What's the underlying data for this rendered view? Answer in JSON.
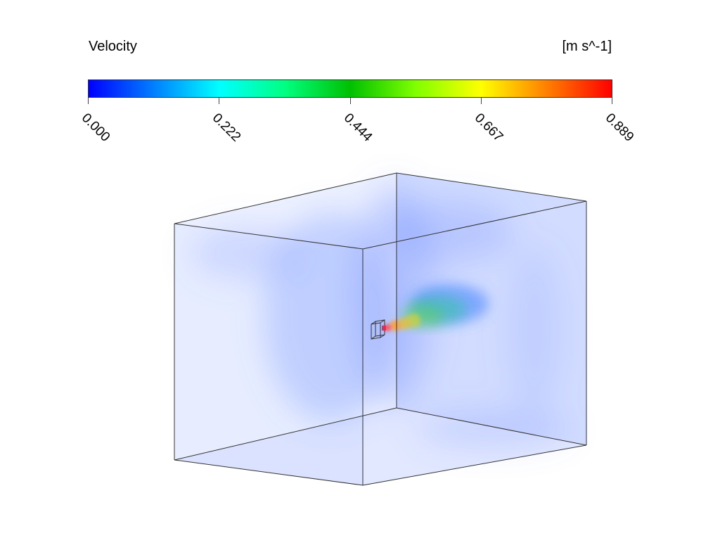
{
  "legend": {
    "title": "Velocity",
    "units": "[m s^-1]",
    "min": 0.0,
    "max": 0.889,
    "tick_labels": [
      "0.000",
      "0.222",
      "0.444",
      "0.667",
      "0.889"
    ],
    "colormap": [
      "#0000ff",
      "#0080ff",
      "#00ffff",
      "#00ff80",
      "#00c000",
      "#80ff00",
      "#ffff00",
      "#ff8000",
      "#ff0000"
    ]
  },
  "scene": {
    "volume_tint": "#6a8cff",
    "jet_colors": [
      "#ff4040",
      "#ffa030",
      "#c8d040",
      "#60d060",
      "#30c8a0",
      "#5aa8ff"
    ],
    "source_color": "#e03050",
    "edge_color": "#333333"
  }
}
